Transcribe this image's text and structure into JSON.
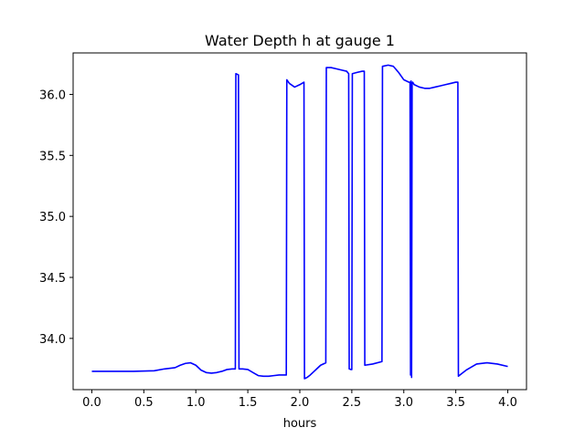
{
  "chart_data": {
    "type": "line",
    "title": "Water Depth h at gauge 1",
    "xlabel": "hours",
    "ylabel": "",
    "xlim": [
      -0.18,
      4.18
    ],
    "ylim": [
      33.58,
      36.34
    ],
    "xticks": [
      0.0,
      0.5,
      1.0,
      1.5,
      2.0,
      2.5,
      3.0,
      3.5,
      4.0
    ],
    "xtick_labels": [
      "0.0",
      "0.5",
      "1.0",
      "1.5",
      "2.0",
      "2.5",
      "3.0",
      "3.5",
      "4.0"
    ],
    "yticks": [
      34.0,
      34.5,
      35.0,
      35.5,
      36.0
    ],
    "ytick_labels": [
      "34.0",
      "34.5",
      "35.0",
      "35.5",
      "36.0"
    ],
    "grid": false,
    "series": [
      {
        "color": "#0000ff",
        "x": [
          0.0,
          0.2,
          0.4,
          0.6,
          0.7,
          0.8,
          0.85,
          0.9,
          0.95,
          1.0,
          1.05,
          1.1,
          1.15,
          1.2,
          1.25,
          1.3,
          1.35,
          1.38,
          1.385,
          1.41,
          1.415,
          1.45,
          1.5,
          1.55,
          1.6,
          1.65,
          1.7,
          1.75,
          1.8,
          1.87,
          1.875,
          1.9,
          1.95,
          2.0,
          2.04,
          2.045,
          2.07,
          2.1,
          2.15,
          2.2,
          2.25,
          2.255,
          2.3,
          2.35,
          2.4,
          2.45,
          2.47,
          2.475,
          2.49,
          2.5,
          2.505,
          2.55,
          2.6,
          2.62,
          2.625,
          2.7,
          2.79,
          2.795,
          2.85,
          2.9,
          2.95,
          3.0,
          3.05,
          3.06,
          3.065,
          3.07,
          3.075,
          3.08,
          3.085,
          3.1,
          3.15,
          3.2,
          3.25,
          3.3,
          3.35,
          3.4,
          3.45,
          3.5,
          3.52,
          3.525,
          3.6,
          3.7,
          3.8,
          3.9,
          4.0
        ],
        "y": [
          33.73,
          33.73,
          33.73,
          33.735,
          33.75,
          33.76,
          33.78,
          33.795,
          33.8,
          33.78,
          33.74,
          33.72,
          33.715,
          33.72,
          33.73,
          33.745,
          33.75,
          33.75,
          36.17,
          36.16,
          33.75,
          33.75,
          33.745,
          33.72,
          33.695,
          33.69,
          33.69,
          33.695,
          33.7,
          33.7,
          36.12,
          36.09,
          36.06,
          36.08,
          36.1,
          33.67,
          33.68,
          33.7,
          33.74,
          33.78,
          33.8,
          36.22,
          36.22,
          36.21,
          36.2,
          36.19,
          36.17,
          33.75,
          33.745,
          33.745,
          36.17,
          36.18,
          36.19,
          36.19,
          33.78,
          33.79,
          33.81,
          36.23,
          36.24,
          36.23,
          36.18,
          36.12,
          36.1,
          36.1,
          33.7,
          36.11,
          33.68,
          36.09,
          36.1,
          36.08,
          36.06,
          36.05,
          36.05,
          36.06,
          36.07,
          36.08,
          36.09,
          36.1,
          36.1,
          33.69,
          33.74,
          33.79,
          33.8,
          33.79,
          33.77
        ]
      }
    ]
  }
}
